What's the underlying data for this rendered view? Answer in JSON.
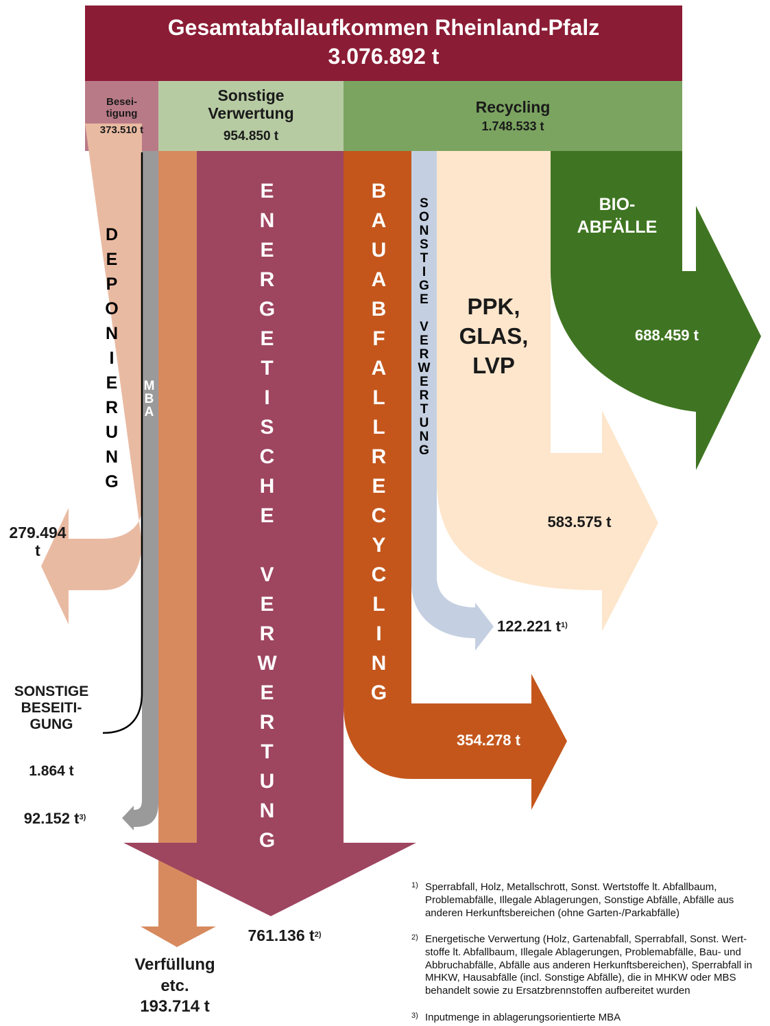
{
  "header": {
    "title": "Gesamtabfallaufkommen Rheinland-Pfalz",
    "total": "3.076.892 t"
  },
  "categories": [
    {
      "label": "Besei-\ntigung",
      "amount": "373.510 t"
    },
    {
      "label": "Sonstige\nVerwertung",
      "amount": "954.850 t"
    },
    {
      "label": "Recycling",
      "amount": "1.748.533 t"
    }
  ],
  "flows": [
    {
      "label": "DEPONIERUNG",
      "amount": "279.494\nt"
    },
    {
      "label": "MBA",
      "amount": "92.152 t",
      "note": "3)"
    },
    {
      "label": "SONSTIGE\nBESEITI-\nGUNG",
      "amount": "1.864 t"
    },
    {
      "label": "Verfüllung\netc.",
      "amount": "193.714 t"
    },
    {
      "label": "ENERGETISCHE VERWERTUNG",
      "amount": "761.136 t",
      "note": "2)"
    },
    {
      "label": "BAUABFALLRECYCLING",
      "amount": "354.278 t"
    },
    {
      "label": "SONSTIGE VERWERTUNG",
      "amount": "122.221 t",
      "note": "1)"
    },
    {
      "label": "PPK,\nGLAS,\nLVP",
      "amount": "583.575 t"
    },
    {
      "label": "BIO-\nABFÄLLE",
      "amount": "688.459 t"
    }
  ],
  "footnotes": [
    {
      "mark": "1)",
      "text": "Sperrabfall, Holz, Metallschrott, Sonst. Wertstoffe lt. Abfallbaum,\nProblemabfälle, Illegale Ablagerungen, Sonstige Abfälle, Abfälle aus\nanderen Herkunftsbereichen (ohne Garten-/Parkabfälle)"
    },
    {
      "mark": "2)",
      "text": "Energetische Verwertung (Holz, Gartenabfall, Sperrabfall, Sonst. Wert-\nstoffe lt. Abfallbaum, Illegale Ablagerungen, Problemabfälle, Bau- und\nAbbruchabfälle, Abfälle aus anderen Herkunftsbereichen), Sperrabfall in\nMHKW, Hausabfälle (incl. Sonstige Abfälle), die in MHKW oder MBS\nbehandelt sowie zu Ersatzbrennstoffen aufbereitet wurden"
    },
    {
      "mark": "3)",
      "text": "Inputmenge in ablagerungsorientierte MBA"
    }
  ]
}
